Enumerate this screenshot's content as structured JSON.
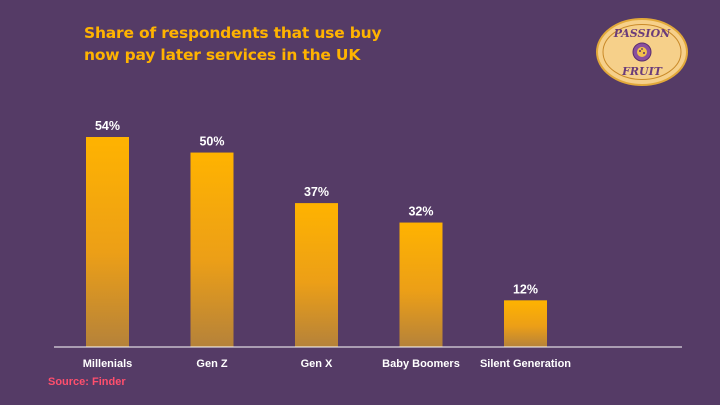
{
  "title_lines": [
    "Share of respondents that use buy",
    "now pay later services in the UK"
  ],
  "logo": {
    "text_top": "PASSION",
    "text_bottom": "FRUIT",
    "icon": "passion-fruit-icon"
  },
  "source": "Source: Finder",
  "colors": {
    "background": "#553b66",
    "title": "#ffb300",
    "bar_top": "#ffb300",
    "bar_bottom": "#b5823a",
    "source": "#ff4f6d",
    "axis": "#ffffff"
  },
  "chart_data": {
    "type": "bar",
    "title": "Share of respondents that use buy now pay later services in the UK",
    "categories": [
      "Millenials",
      "Gen Z",
      "Gen X",
      "Baby Boomers",
      "Silent Generation"
    ],
    "values": [
      54,
      50,
      37,
      32,
      12
    ],
    "data_labels": [
      "54%",
      "50%",
      "37%",
      "32%",
      "12%"
    ],
    "unit": "%",
    "ylim": [
      0,
      100
    ],
    "grid": false,
    "legend": "none"
  }
}
